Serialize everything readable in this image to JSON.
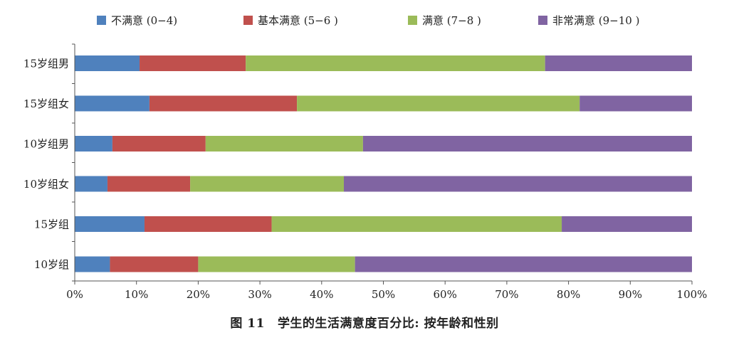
{
  "caption": {
    "figure_number": "图 11",
    "title": "学生的生活满意度百分比: 按年龄和性别"
  },
  "chart_data": {
    "type": "bar",
    "orientation": "horizontal",
    "stacked": "percent",
    "title": "",
    "xlabel": "",
    "ylabel": "",
    "xlim": [
      0,
      100
    ],
    "x_ticks": [
      "0%",
      "10%",
      "20%",
      "30%",
      "40%",
      "50%",
      "60%",
      "70%",
      "80%",
      "90%",
      "100%"
    ],
    "grid": false,
    "legend_position": "top",
    "categories": [
      "15岁组男",
      "15岁组女",
      "10岁组男",
      "10岁组女",
      "15岁组",
      "10岁组"
    ],
    "series": [
      {
        "name": "不满意 (0−4)",
        "color": "#4f81bd",
        "values": [
          10.5,
          12.1,
          6.1,
          5.3,
          11.3,
          5.7
        ]
      },
      {
        "name": "基本满意 (5−6 )",
        "color": "#c0504d",
        "values": [
          17.2,
          23.9,
          15.1,
          13.4,
          20.6,
          14.3
        ]
      },
      {
        "name": "满意 (7−8 )",
        "color": "#9bbb59",
        "values": [
          48.5,
          45.8,
          25.5,
          24.9,
          47.0,
          25.4
        ]
      },
      {
        "name": "非常满意 (9−10 )",
        "color": "#8064a2",
        "values": [
          23.8,
          18.2,
          53.3,
          56.4,
          21.1,
          54.6
        ]
      }
    ]
  }
}
